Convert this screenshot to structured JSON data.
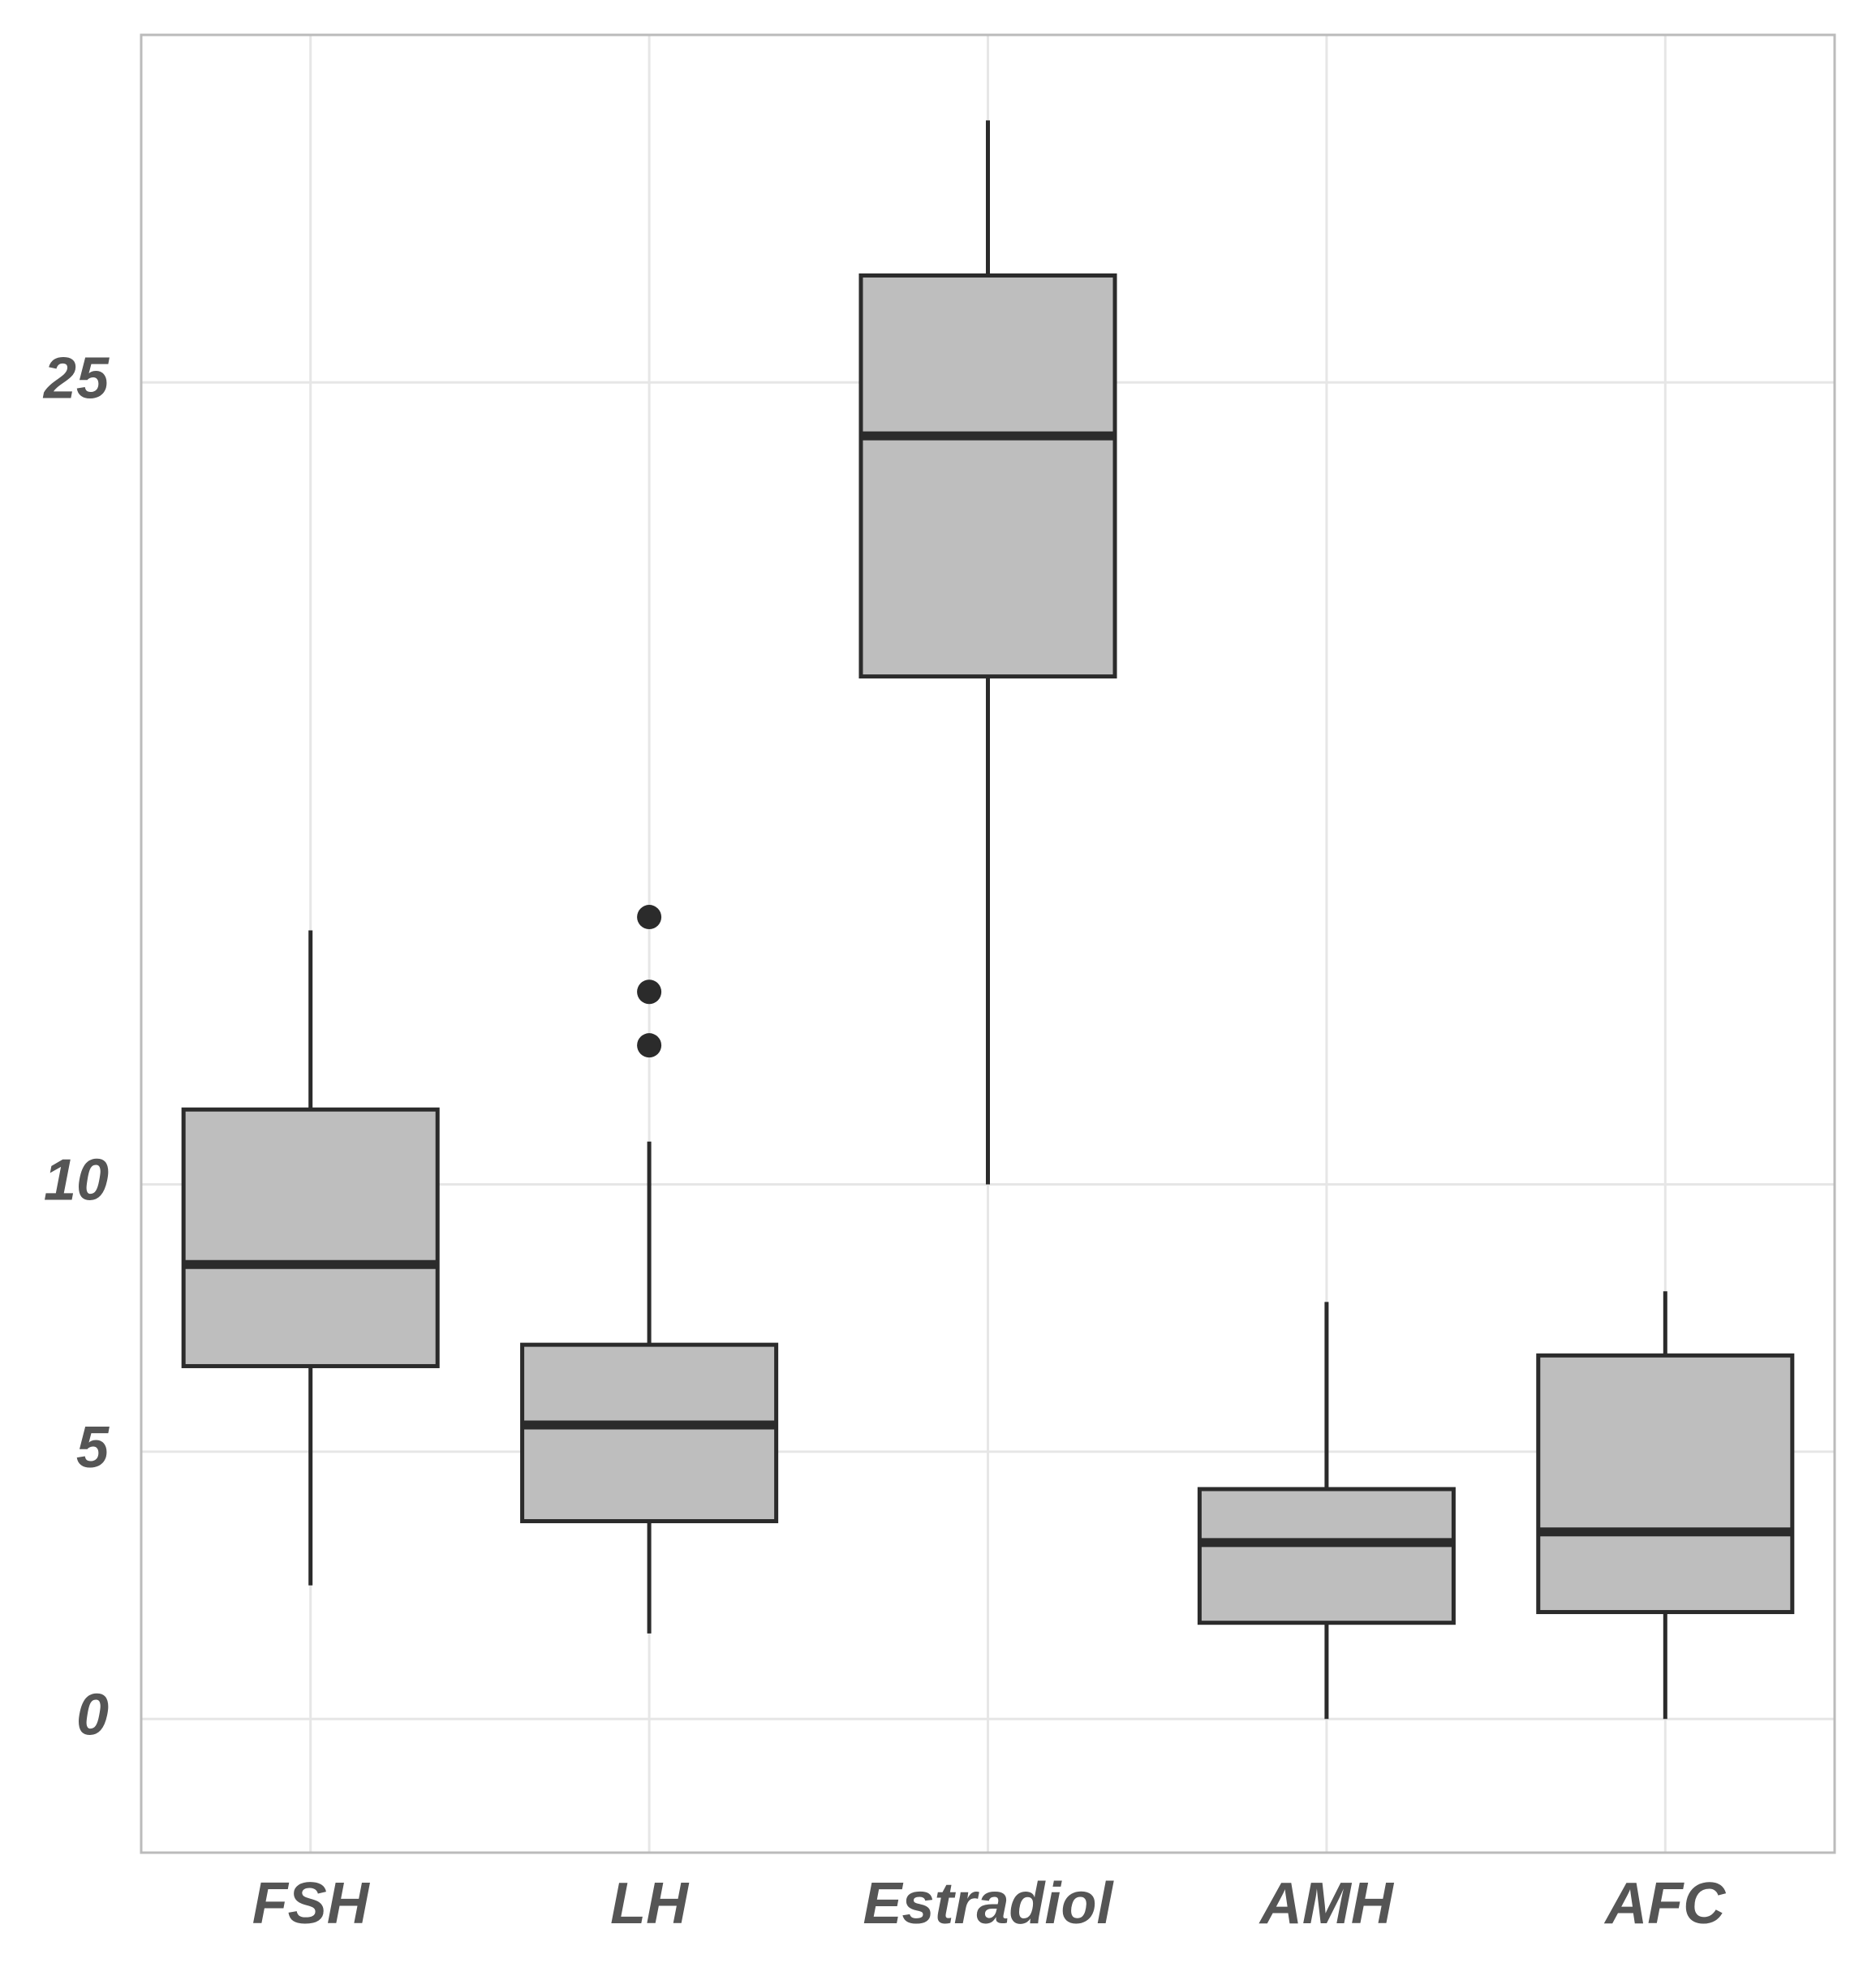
{
  "chart_data": {
    "type": "box",
    "categories": [
      "FSH",
      "LH",
      "Estradiol",
      "AMH",
      "AFC"
    ],
    "boxes": [
      {
        "min": 2.5,
        "q1": 6.6,
        "median": 8.5,
        "q3": 11.4,
        "max": 14.75,
        "outliers": []
      },
      {
        "min": 1.6,
        "q1": 3.7,
        "median": 5.5,
        "q3": 7.0,
        "max": 10.8,
        "outliers": [
          15.0,
          13.6,
          12.6
        ]
      },
      {
        "min": 10.0,
        "q1": 19.5,
        "median": 24.0,
        "q3": 27.0,
        "max": 29.9,
        "outliers": []
      },
      {
        "min": 0,
        "q1": 1.8,
        "median": 3.3,
        "q3": 4.3,
        "max": 7.8,
        "outliers": []
      },
      {
        "min": 0,
        "q1": 2.0,
        "median": 3.5,
        "q3": 6.8,
        "max": 8.0,
        "outliers": []
      }
    ],
    "color": "#bebebe",
    "ylim": [
      -2.5,
      31.5
    ],
    "yticks": [
      0,
      5,
      10,
      25
    ],
    "grid": true
  }
}
